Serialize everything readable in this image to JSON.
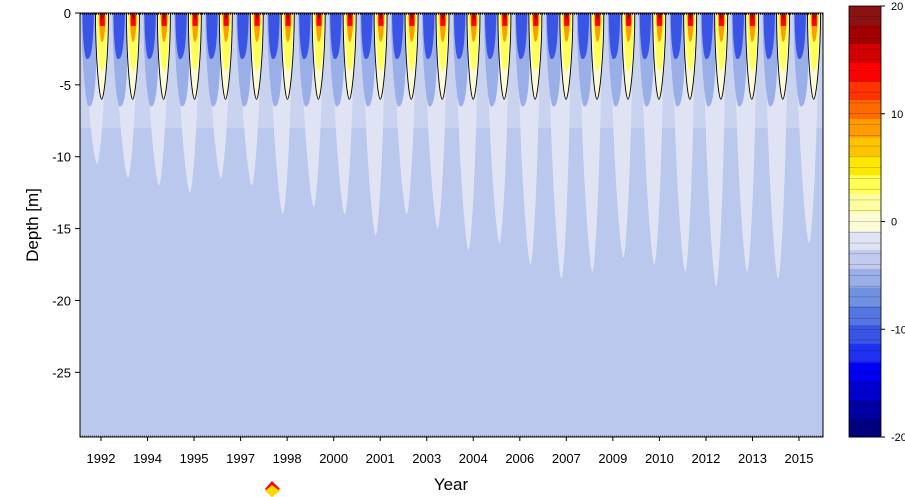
{
  "chart_data": {
    "type": "heatmap",
    "title": "",
    "xlabel": "Year",
    "ylabel": "Depth [m]",
    "x_tick_labels": [
      "1992",
      "1994",
      "1995",
      "1997",
      "1998",
      "2000",
      "2001",
      "2003",
      "2004",
      "2006",
      "2007",
      "2009",
      "2010",
      "2012",
      "2013",
      "2015"
    ],
    "y_ticks": [
      0,
      -5,
      -10,
      -15,
      -20,
      -25
    ],
    "ylim": [
      -29.5,
      0
    ],
    "n_seasons": 24,
    "seasonal_warm_depth": -6,
    "cold_tongue_depths": [
      -10.5,
      -11.5,
      -12,
      -12.5,
      -11.5,
      -12,
      -14,
      -13.5,
      -14,
      -15.5,
      -14,
      -15,
      -16.5,
      -16,
      -17.5,
      -18.5,
      -18,
      -17,
      -17.5,
      -18,
      -19,
      -18,
      -18.5,
      -16
    ],
    "background_value": -3,
    "zero_contour": true,
    "colorbar": {
      "ticks": [
        20,
        10,
        0,
        -10,
        -20
      ],
      "tick_labels": [
        "20",
        "10",
        "0",
        "-10",
        "-20"
      ],
      "range": [
        -20,
        20
      ],
      "colors_low_to_high": [
        "#00007f",
        "#0000a6",
        "#0000d0",
        "#0000f5",
        "#1f30f0",
        "#3a55e6",
        "#5575e0",
        "#7090e2",
        "#9aaee8",
        "#c2cbee",
        "#e0e3f4",
        "#fbfbd6",
        "#fdfda0",
        "#ffff55",
        "#ffe800",
        "#ffc400",
        "#ff9d00",
        "#ff6a00",
        "#ff3300",
        "#ff0000",
        "#d40000",
        "#a20000",
        "#8b1212"
      ]
    },
    "colors": {
      "background_fill": "#bbc8ee",
      "deep_light": "#e0e3f4",
      "mid_blue": "#9aaee8",
      "strong_blue": "#3a55e6",
      "pale_yellow": "#fbfbd6",
      "yellow": "#ffff55",
      "orange": "#ff9d00",
      "red": "#ff0000",
      "dark_red": "#8b1212",
      "marker_red": "#ff0000",
      "marker_yellow": "#ffd800"
    }
  }
}
